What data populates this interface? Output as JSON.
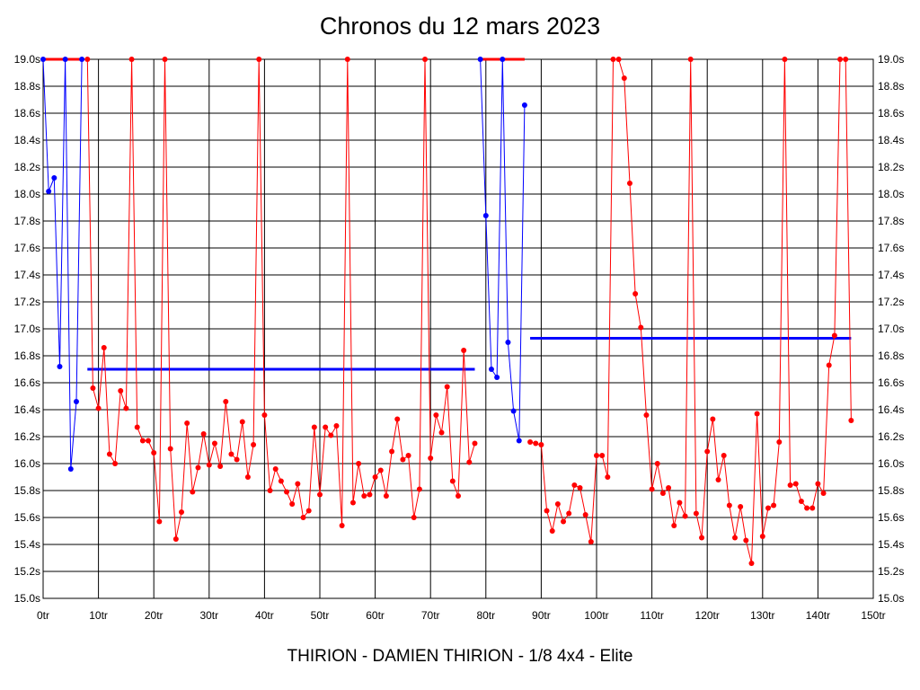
{
  "chart_data": {
    "type": "line",
    "title": "Chronos du 12 mars 2023",
    "footer": "THIRION - DAMIEN THIRION - 1/8 4x4 - Elite",
    "xlim": [
      0,
      150
    ],
    "ylim": [
      15.0,
      19.0
    ],
    "x_ticks": [
      "0tr",
      "10tr",
      "20tr",
      "30tr",
      "40tr",
      "50tr",
      "60tr",
      "70tr",
      "80tr",
      "90tr",
      "100tr",
      "110tr",
      "120tr",
      "130tr",
      "140tr",
      "150tr"
    ],
    "y_ticks": [
      "15.0s",
      "15.2s",
      "15.4s",
      "15.6s",
      "15.8s",
      "16.0s",
      "16.2s",
      "16.4s",
      "16.6s",
      "16.8s",
      "17.0s",
      "17.2s",
      "17.4s",
      "17.6s",
      "17.8s",
      "18.0s",
      "18.2s",
      "18.4s",
      "18.6s",
      "18.8s",
      "19.0s"
    ],
    "grid": true,
    "colors": {
      "red": "#ff0000",
      "blue": "#0000ff",
      "grid": "#000000"
    },
    "series": [
      {
        "color": "#0000ff",
        "points": [
          [
            0,
            19.0
          ],
          [
            1,
            18.02
          ],
          [
            2,
            18.12
          ],
          [
            3,
            16.72
          ],
          [
            4,
            19.0
          ],
          [
            5,
            15.96
          ],
          [
            6,
            16.46
          ],
          [
            7,
            19.0
          ]
        ]
      },
      {
        "color": "#ff0000",
        "points": [
          [
            8,
            19.0
          ],
          [
            9,
            16.56
          ],
          [
            10,
            16.41
          ],
          [
            11,
            16.86
          ],
          [
            12,
            16.07
          ],
          [
            13,
            16.0
          ],
          [
            14,
            16.54
          ],
          [
            15,
            16.41
          ],
          [
            16,
            19.0
          ],
          [
            17,
            16.27
          ],
          [
            18,
            16.17
          ],
          [
            19,
            16.17
          ],
          [
            20,
            16.08
          ],
          [
            21,
            15.57
          ],
          [
            22,
            19.0
          ],
          [
            23,
            16.11
          ],
          [
            24,
            15.44
          ],
          [
            25,
            15.64
          ],
          [
            26,
            16.3
          ],
          [
            27,
            15.79
          ],
          [
            28,
            15.97
          ],
          [
            29,
            16.22
          ],
          [
            30,
            15.99
          ],
          [
            31,
            16.15
          ],
          [
            32,
            15.98
          ],
          [
            33,
            16.46
          ],
          [
            34,
            16.07
          ],
          [
            35,
            16.03
          ],
          [
            36,
            16.31
          ],
          [
            37,
            15.9
          ],
          [
            38,
            16.14
          ],
          [
            39,
            19.0
          ],
          [
            40,
            16.36
          ],
          [
            41,
            15.8
          ],
          [
            42,
            15.96
          ],
          [
            43,
            15.87
          ],
          [
            44,
            15.79
          ],
          [
            45,
            15.7
          ],
          [
            46,
            15.85
          ],
          [
            47,
            15.6
          ],
          [
            48,
            15.65
          ],
          [
            49,
            16.27
          ],
          [
            50,
            15.77
          ],
          [
            51,
            16.27
          ],
          [
            52,
            16.21
          ],
          [
            53,
            16.28
          ],
          [
            54,
            15.54
          ],
          [
            55,
            19.0
          ],
          [
            56,
            15.71
          ],
          [
            57,
            16.0
          ],
          [
            58,
            15.76
          ],
          [
            59,
            15.77
          ],
          [
            60,
            15.9
          ],
          [
            61,
            15.95
          ],
          [
            62,
            15.76
          ],
          [
            63,
            16.09
          ],
          [
            64,
            16.33
          ],
          [
            65,
            16.03
          ],
          [
            66,
            16.06
          ],
          [
            67,
            15.6
          ],
          [
            68,
            15.81
          ],
          [
            69,
            19.0
          ],
          [
            70,
            16.04
          ],
          [
            71,
            16.36
          ],
          [
            72,
            16.23
          ],
          [
            73,
            16.57
          ],
          [
            74,
            15.87
          ],
          [
            75,
            15.76
          ],
          [
            76,
            16.84
          ],
          [
            77,
            16.01
          ],
          [
            78,
            16.15
          ]
        ]
      },
      {
        "color": "#0000ff",
        "points": [
          [
            79,
            19.0
          ],
          [
            80,
            17.84
          ],
          [
            81,
            16.7
          ],
          [
            82,
            16.64
          ],
          [
            83,
            19.0
          ],
          [
            84,
            16.9
          ],
          [
            85,
            16.39
          ],
          [
            86,
            16.17
          ],
          [
            87,
            18.66
          ]
        ]
      },
      {
        "color": "#ff0000",
        "points": [
          [
            88,
            16.16
          ],
          [
            89,
            16.15
          ],
          [
            90,
            16.14
          ],
          [
            91,
            15.65
          ],
          [
            92,
            15.5
          ],
          [
            93,
            15.7
          ],
          [
            94,
            15.57
          ],
          [
            95,
            15.63
          ],
          [
            96,
            15.84
          ],
          [
            97,
            15.82
          ],
          [
            98,
            15.62
          ],
          [
            99,
            15.42
          ],
          [
            100,
            16.06
          ],
          [
            101,
            16.06
          ],
          [
            102,
            15.9
          ],
          [
            103,
            19.0
          ],
          [
            104,
            19.0
          ],
          [
            105,
            18.86
          ],
          [
            106,
            18.08
          ],
          [
            107,
            17.26
          ],
          [
            108,
            17.01
          ],
          [
            109,
            16.36
          ],
          [
            110,
            15.81
          ],
          [
            111,
            16.0
          ],
          [
            112,
            15.78
          ],
          [
            113,
            15.82
          ],
          [
            114,
            15.54
          ],
          [
            115,
            15.71
          ],
          [
            116,
            15.61
          ],
          [
            117,
            19.0
          ],
          [
            118,
            15.63
          ],
          [
            119,
            15.45
          ],
          [
            120,
            16.09
          ],
          [
            121,
            16.33
          ],
          [
            122,
            15.88
          ],
          [
            123,
            16.06
          ],
          [
            124,
            15.69
          ],
          [
            125,
            15.45
          ],
          [
            126,
            15.68
          ],
          [
            127,
            15.43
          ],
          [
            128,
            15.26
          ],
          [
            129,
            16.37
          ],
          [
            130,
            15.46
          ],
          [
            131,
            15.67
          ],
          [
            132,
            15.69
          ],
          [
            133,
            16.16
          ],
          [
            134,
            19.0
          ],
          [
            135,
            15.84
          ],
          [
            136,
            15.85
          ],
          [
            137,
            15.72
          ],
          [
            138,
            15.67
          ],
          [
            139,
            15.67
          ],
          [
            140,
            15.85
          ],
          [
            141,
            15.78
          ],
          [
            142,
            16.73
          ],
          [
            143,
            16.95
          ],
          [
            144,
            19.0
          ],
          [
            145,
            19.0
          ],
          [
            146,
            16.32
          ]
        ]
      }
    ],
    "capped_segments": [
      {
        "color": "#ff0000",
        "x": [
          0,
          7
        ],
        "y": 19.0
      },
      {
        "color": "#ff0000",
        "x": [
          79,
          87
        ],
        "y": 19.0
      }
    ],
    "average_lines": [
      {
        "color": "#0000ff",
        "x": [
          8,
          78
        ],
        "y": 16.7
      },
      {
        "color": "#0000ff",
        "x": [
          88,
          146
        ],
        "y": 16.93
      }
    ]
  }
}
